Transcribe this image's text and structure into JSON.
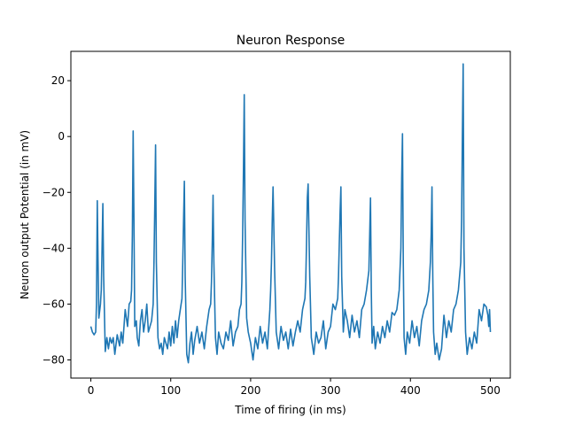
{
  "chart_data": {
    "type": "line",
    "title": "Neuron Response",
    "xlabel": "Time of firing (in ms)",
    "ylabel": "Neuron output Potential (in mV)",
    "xlim": [
      -25,
      525
    ],
    "ylim": [
      -86.5,
      30.5
    ],
    "xticks": [
      0,
      100,
      200,
      300,
      400,
      500
    ],
    "yticks": [
      -80,
      -60,
      -40,
      -20,
      0,
      20
    ],
    "grid": false,
    "legend": "none",
    "line_color": "#1f77b4",
    "series": [
      {
        "x": [
          0,
          2,
          4,
          6,
          7,
          8,
          9,
          10,
          12,
          13,
          14,
          15,
          16,
          18,
          20,
          22,
          24,
          26,
          28,
          30,
          33,
          36,
          38,
          40,
          43,
          46,
          48,
          50,
          51,
          52,
          53,
          54,
          55,
          57,
          58,
          60,
          62,
          64,
          66,
          68,
          70,
          72,
          74,
          76,
          78,
          79,
          80,
          81,
          82,
          84,
          86,
          88,
          90,
          92,
          94,
          96,
          98,
          100,
          102,
          104,
          106,
          108,
          110,
          112,
          114,
          115,
          116,
          117,
          118,
          120,
          122,
          124,
          126,
          128,
          130,
          133,
          136,
          139,
          142,
          145,
          148,
          150,
          151,
          152,
          153,
          154,
          156,
          158,
          160,
          163,
          166,
          169,
          172,
          175,
          178,
          181,
          184,
          186,
          188,
          189,
          190,
          191,
          192,
          193,
          195,
          197,
          200,
          203,
          206,
          209,
          212,
          215,
          218,
          221,
          224,
          225,
          226,
          227,
          228,
          230,
          232,
          235,
          238,
          241,
          244,
          247,
          250,
          253,
          256,
          259,
          262,
          265,
          268,
          269,
          270,
          271,
          272,
          274,
          276,
          279,
          282,
          285,
          288,
          291,
          294,
          297,
          300,
          303,
          306,
          309,
          310,
          311,
          312,
          313,
          314,
          316,
          318,
          321,
          324,
          327,
          330,
          333,
          336,
          339,
          342,
          345,
          348,
          349,
          350,
          351,
          352,
          354,
          356,
          359,
          362,
          365,
          368,
          371,
          374,
          377,
          380,
          383,
          386,
          388,
          389,
          390,
          391,
          392,
          394,
          396,
          399,
          402,
          405,
          408,
          411,
          414,
          417,
          420,
          423,
          425,
          426,
          427,
          428,
          429,
          431,
          433,
          436,
          439,
          442,
          445,
          448,
          451,
          454,
          457,
          460,
          463,
          464,
          465,
          466,
          467,
          469,
          471,
          474,
          477,
          480,
          483,
          486,
          489,
          492,
          495,
          497,
          498,
          499,
          500
        ],
        "values": [
          -68,
          -70,
          -71,
          -70,
          -60,
          -23,
          -45,
          -65,
          -60,
          -55,
          -40,
          -24,
          -50,
          -77,
          -72,
          -76,
          -72,
          -74,
          -72,
          -78,
          -71,
          -75,
          -70,
          -74,
          -62,
          -68,
          -60,
          -59,
          -55,
          -35,
          2,
          -30,
          -68,
          -66,
          -72,
          -75,
          -66,
          -62,
          -70,
          -66,
          -60,
          -70,
          -68,
          -66,
          -60,
          -45,
          -25,
          -3,
          -45,
          -72,
          -76,
          -74,
          -78,
          -72,
          -74,
          -76,
          -70,
          -75,
          -68,
          -74,
          -66,
          -72,
          -66,
          -62,
          -58,
          -45,
          -30,
          -16,
          -50,
          -78,
          -81,
          -74,
          -70,
          -78,
          -73,
          -68,
          -74,
          -70,
          -76,
          -68,
          -62,
          -60,
          -52,
          -38,
          -21,
          -45,
          -72,
          -78,
          -70,
          -74,
          -76,
          -70,
          -73,
          -66,
          -75,
          -70,
          -68,
          -62,
          -60,
          -52,
          -35,
          -12,
          15,
          -30,
          -65,
          -70,
          -74,
          -80,
          -72,
          -76,
          -68,
          -74,
          -70,
          -76,
          -62,
          -55,
          -45,
          -30,
          -18,
          -48,
          -70,
          -76,
          -68,
          -73,
          -70,
          -76,
          -69,
          -75,
          -70,
          -66,
          -70,
          -62,
          -58,
          -52,
          -38,
          -22,
          -17,
          -50,
          -72,
          -78,
          -70,
          -74,
          -72,
          -66,
          -76,
          -70,
          -68,
          -60,
          -62,
          -58,
          -50,
          -38,
          -27,
          -18,
          -50,
          -70,
          -62,
          -66,
          -72,
          -64,
          -70,
          -66,
          -72,
          -62,
          -60,
          -55,
          -48,
          -35,
          -22,
          -55,
          -74,
          -68,
          -76,
          -70,
          -74,
          -68,
          -72,
          -66,
          -70,
          -63,
          -64,
          -62,
          -55,
          -40,
          -15,
          1,
          -45,
          -72,
          -78,
          -70,
          -74,
          -66,
          -72,
          -68,
          -75,
          -66,
          -62,
          -60,
          -55,
          -45,
          -35,
          -18,
          -50,
          -70,
          -78,
          -74,
          -80,
          -76,
          -64,
          -72,
          -66,
          -70,
          -62,
          -60,
          -55,
          -45,
          -30,
          0,
          26,
          -40,
          -70,
          -78,
          -72,
          -76,
          -70,
          -74,
          -62,
          -66,
          -60,
          -61,
          -64,
          -68,
          -62,
          -70
        ]
      }
    ]
  }
}
